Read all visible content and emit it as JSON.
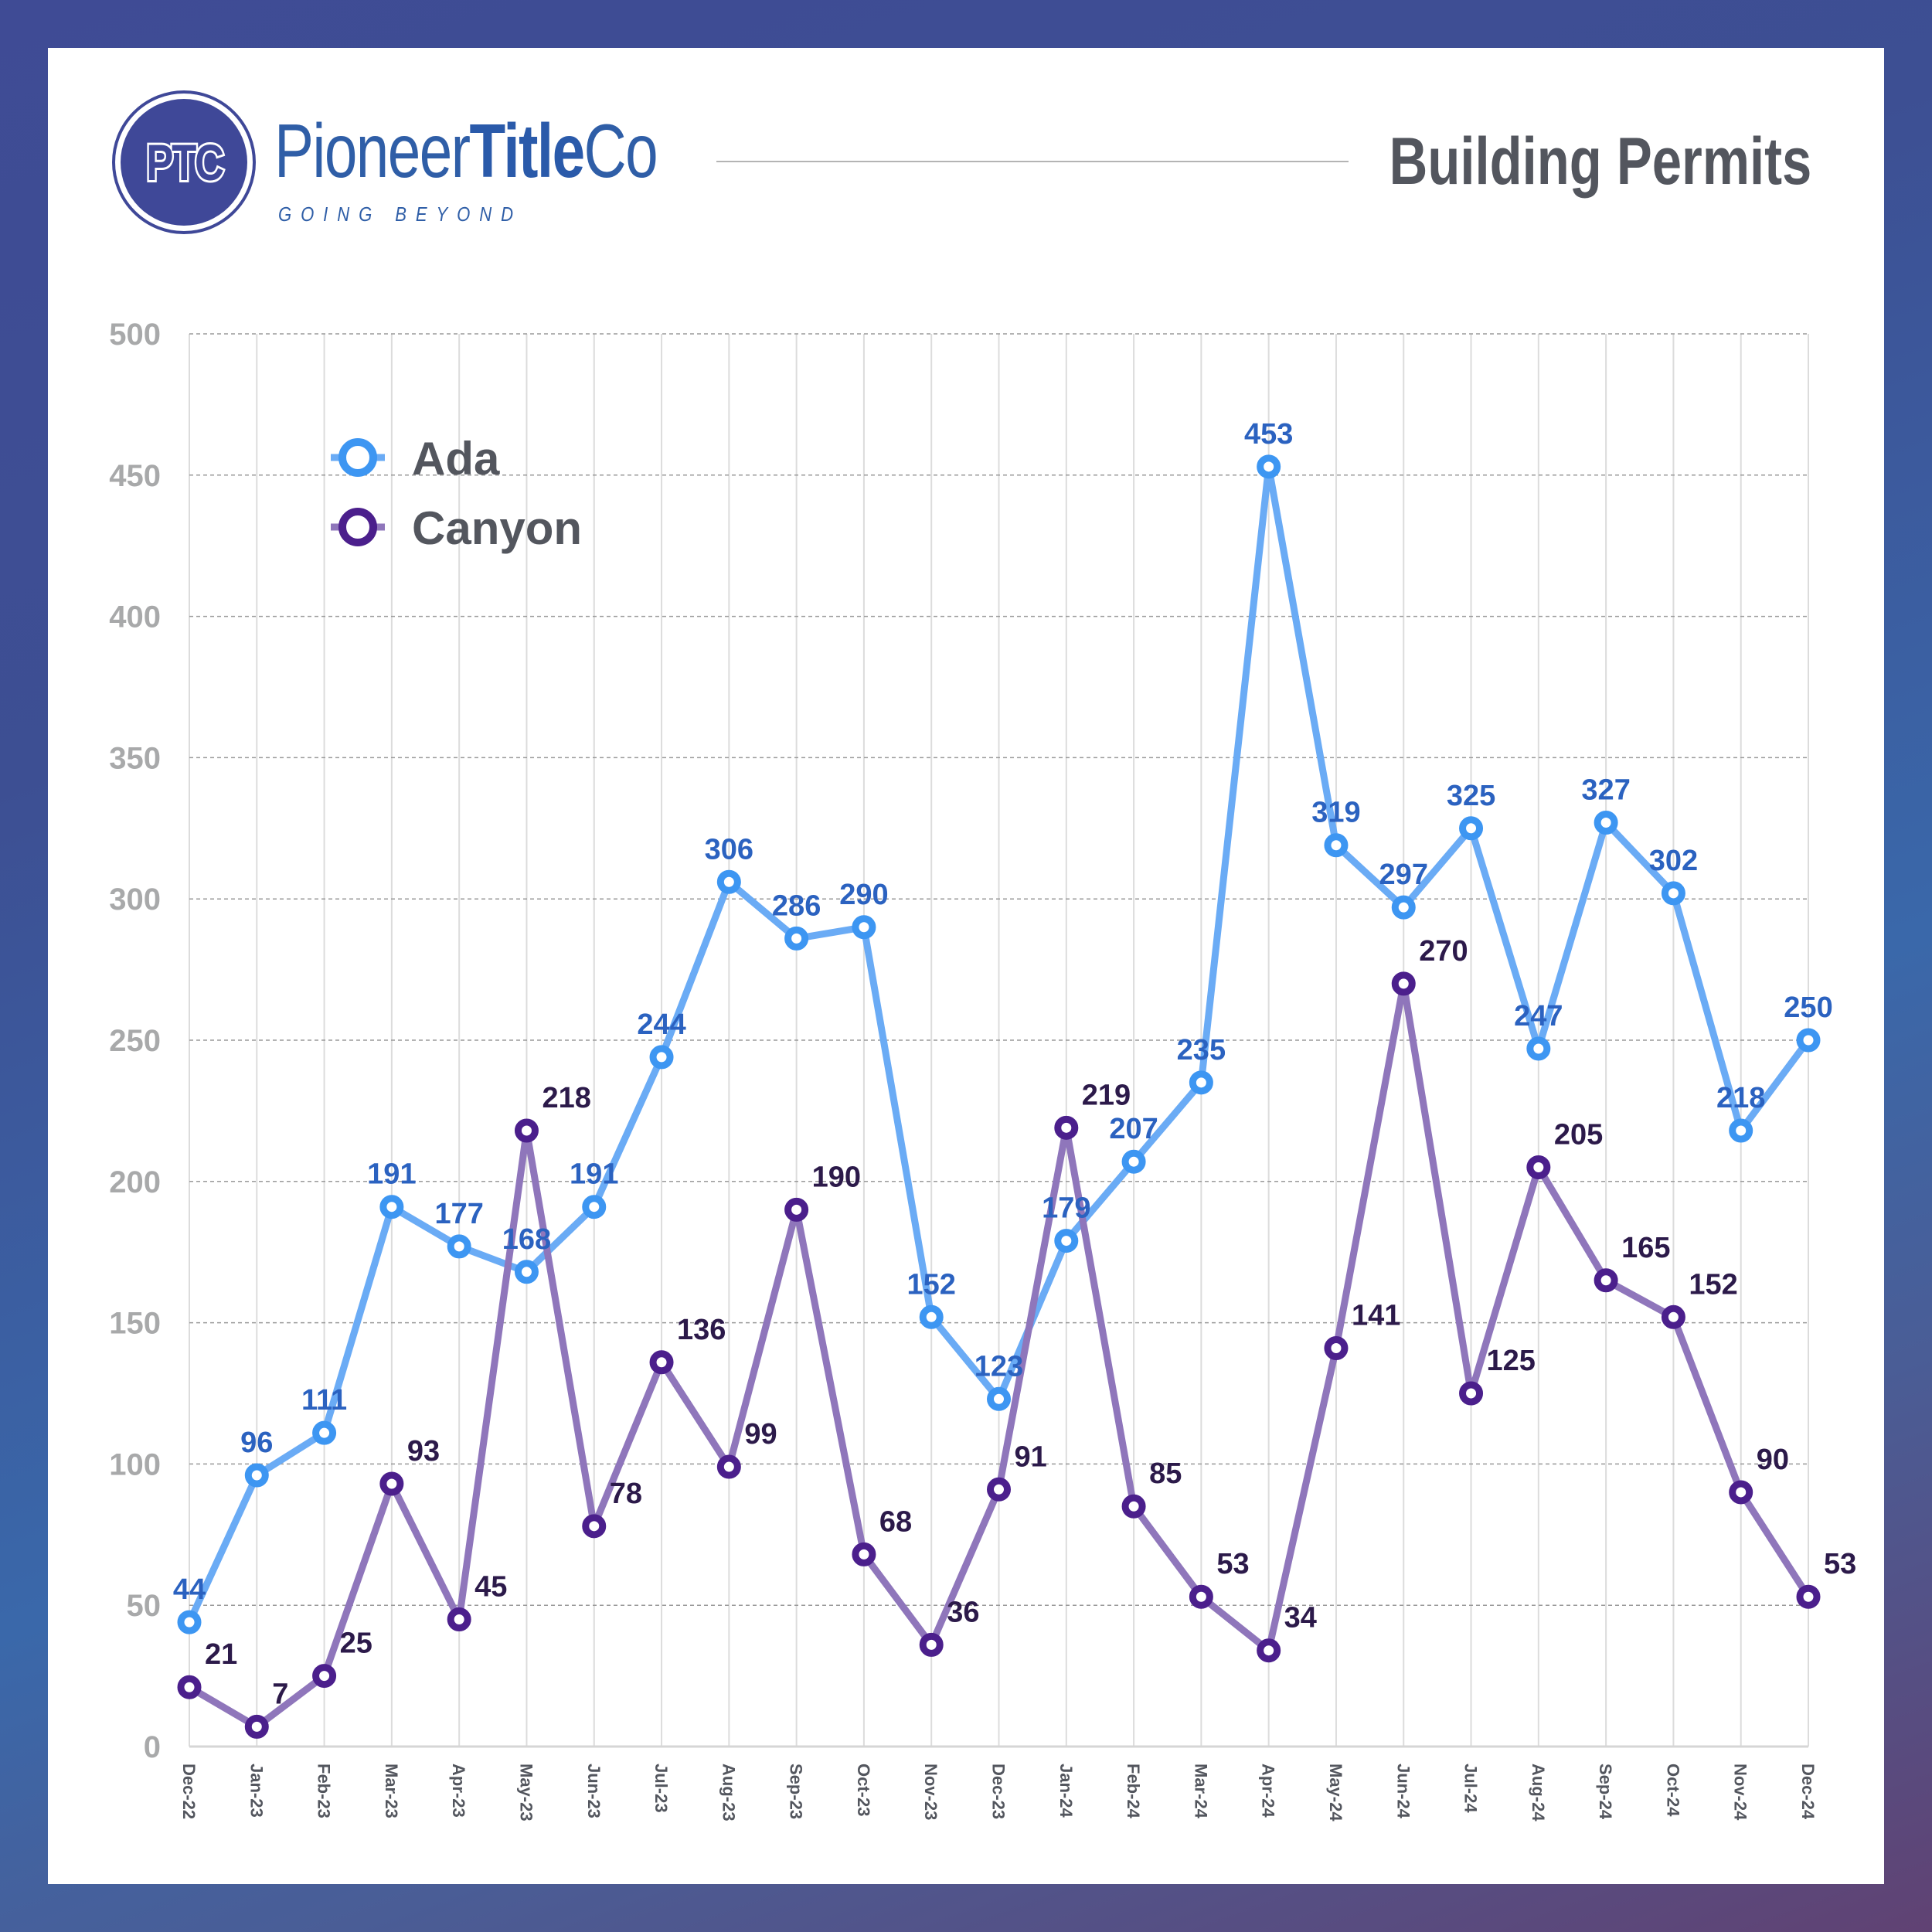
{
  "header": {
    "logo_initials": "PTC",
    "brand_regular": "Pioneer",
    "brand_bold": "Title",
    "brand_suffix": "Co",
    "tagline": "GOING BEYOND",
    "title": "Building Permits"
  },
  "colors": {
    "ada_line": "#6aabf5",
    "ada_marker": "#3d96f2",
    "ada_label": "#2b62c0",
    "canyon_line": "#8f76bb",
    "canyon_marker": "#4b1f8c",
    "canyon_label": "#2c1a4a",
    "axis_text": "#a8a9aa",
    "title_text": "#53565e"
  },
  "chart_data": {
    "type": "line",
    "title": "Building Permits",
    "xlabel": "",
    "ylabel": "",
    "ylim": [
      0,
      500
    ],
    "yticks": [
      0,
      50,
      100,
      150,
      200,
      250,
      300,
      350,
      400,
      450,
      500
    ],
    "grid": true,
    "legend_position": "top-left",
    "categories": [
      "Dec-22",
      "Jan-23",
      "Feb-23",
      "Mar-23",
      "Apr-23",
      "May-23",
      "Jun-23",
      "Jul-23",
      "Aug-23",
      "Sep-23",
      "Oct-23",
      "Nov-23",
      "Dec-23",
      "Jan-24",
      "Feb-24",
      "Mar-24",
      "Apr-24",
      "May-24",
      "Jun-24",
      "Jul-24",
      "Aug-24",
      "Sep-24",
      "Oct-24",
      "Nov-24",
      "Dec-24"
    ],
    "series": [
      {
        "name": "Ada",
        "values": [
          44,
          96,
          111,
          191,
          177,
          168,
          191,
          244,
          306,
          286,
          290,
          152,
          123,
          179,
          207,
          235,
          453,
          319,
          297,
          325,
          247,
          327,
          302,
          218,
          250
        ]
      },
      {
        "name": "Canyon",
        "values": [
          21,
          7,
          25,
          93,
          45,
          218,
          78,
          136,
          99,
          190,
          68,
          36,
          91,
          219,
          85,
          53,
          34,
          141,
          270,
          125,
          205,
          165,
          152,
          90,
          53
        ]
      }
    ]
  }
}
